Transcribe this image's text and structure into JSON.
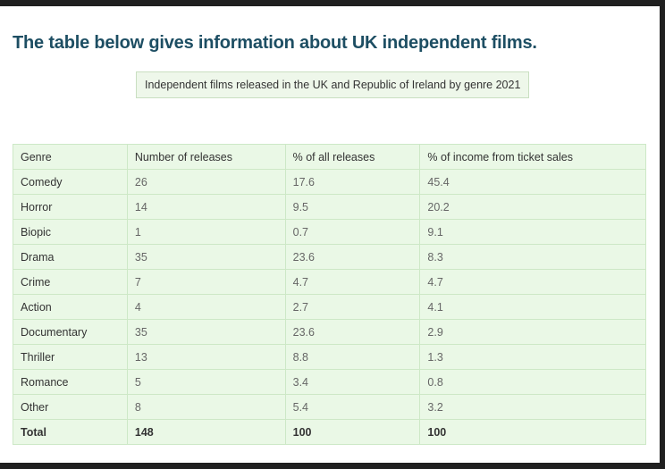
{
  "heading": "The table below gives information about UK independent films.",
  "caption": "Independent films released in the UK and Republic of Ireland by genre 2021",
  "table": {
    "headers": [
      "Genre",
      "Number of releases",
      "% of all releases",
      "% of income from ticket sales"
    ],
    "rows": [
      [
        "Comedy",
        "26",
        "17.6",
        "45.4"
      ],
      [
        "Horror",
        "14",
        "9.5",
        "20.2"
      ],
      [
        "Biopic",
        "1",
        "0.7",
        "9.1"
      ],
      [
        "Drama",
        "35",
        "23.6",
        "8.3"
      ],
      [
        "Crime",
        "7",
        "4.7",
        "4.7"
      ],
      [
        "Action",
        "4",
        "2.7",
        "4.1"
      ],
      [
        "Documentary",
        "35",
        "23.6",
        "2.9"
      ],
      [
        "Thriller",
        "13",
        "8.8",
        "1.3"
      ],
      [
        "Romance",
        "5",
        "3.4",
        "0.8"
      ],
      [
        "Other",
        "8",
        "5.4",
        "3.2"
      ]
    ],
    "total": [
      "Total",
      "148",
      "100",
      "100"
    ]
  }
}
